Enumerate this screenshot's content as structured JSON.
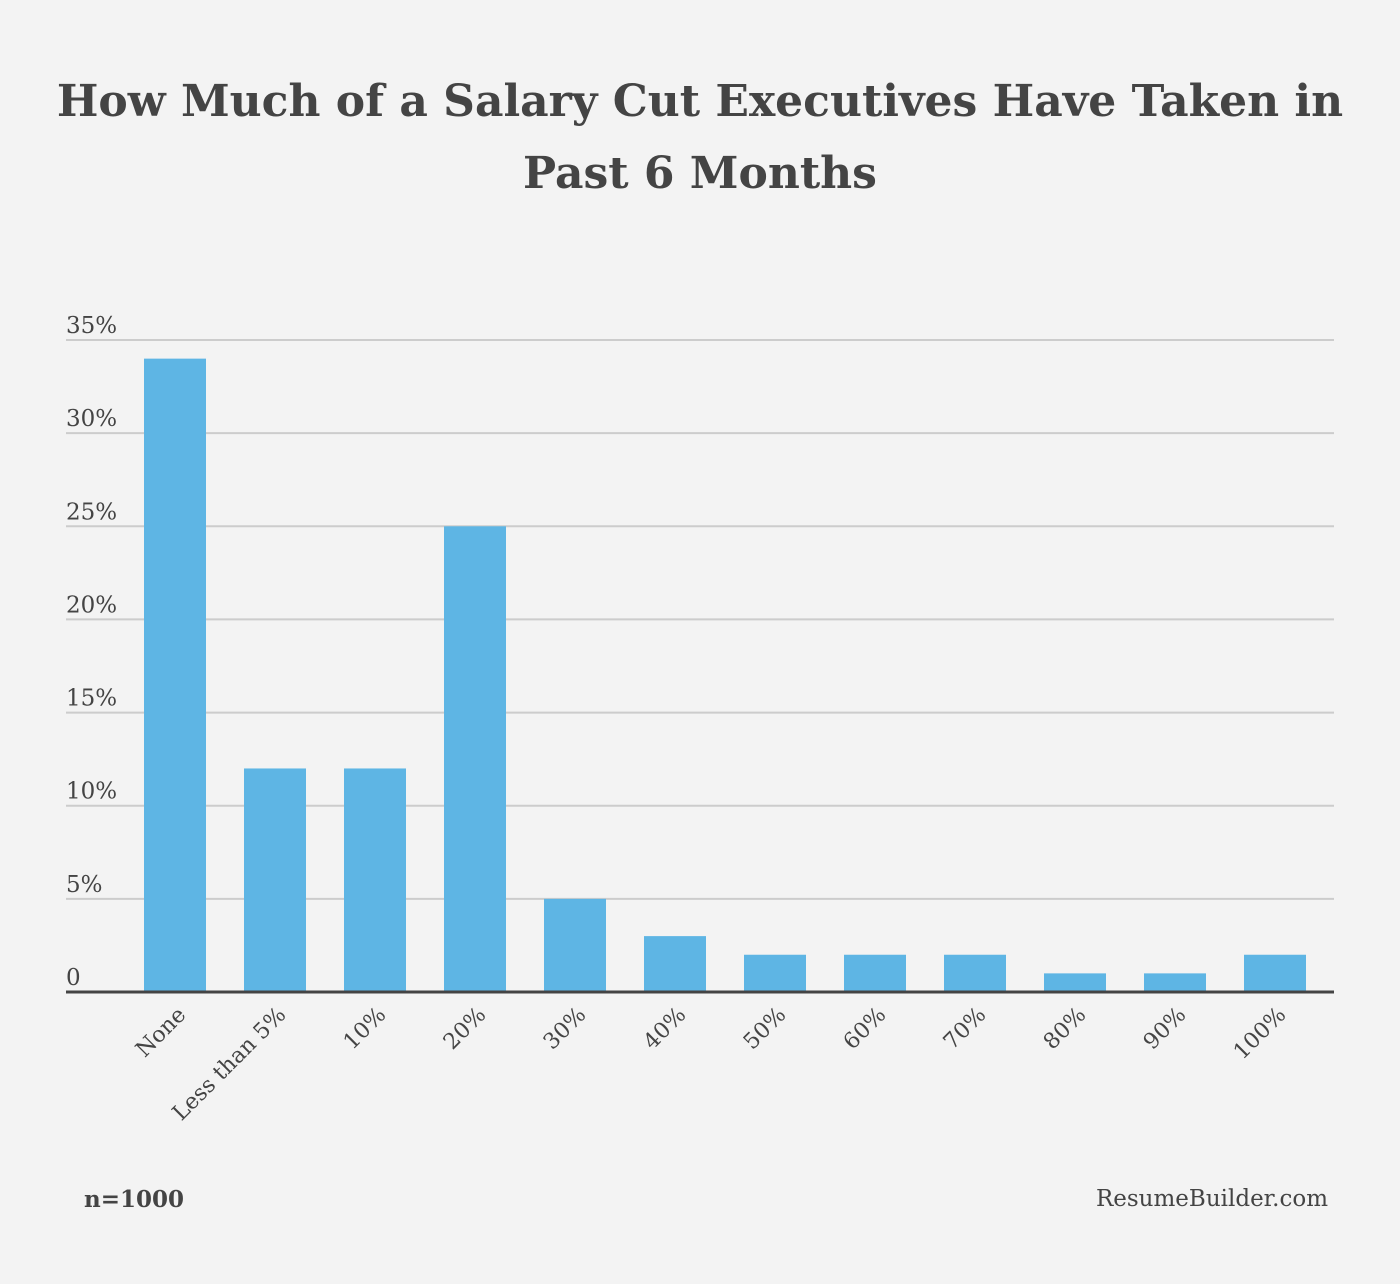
{
  "chart_data": {
    "type": "bar",
    "title_lines": [
      "How Much of a Salary Cut Executives Have Taken in",
      "Past 6 Months"
    ],
    "categories": [
      "None",
      "Less than 5%",
      "10%",
      "20%",
      "30%",
      "40%",
      "50%",
      "60%",
      "70%",
      "80%",
      "90%",
      "100%"
    ],
    "values": [
      34,
      12,
      12,
      25,
      5,
      3,
      2,
      2,
      2,
      1,
      1,
      2
    ],
    "value_unit": "%",
    "ylim": [
      0,
      35
    ],
    "yticks": [
      0,
      5,
      10,
      15,
      20,
      25,
      30,
      35
    ],
    "ytick_labels": [
      "0",
      "5%",
      "10%",
      "15%",
      "20%",
      "25%",
      "30%",
      "35%"
    ],
    "grid": true,
    "bar_color": "#5eb5e4"
  },
  "footer": {
    "sample": "n=1000",
    "source": "ResumeBuilder.com"
  }
}
